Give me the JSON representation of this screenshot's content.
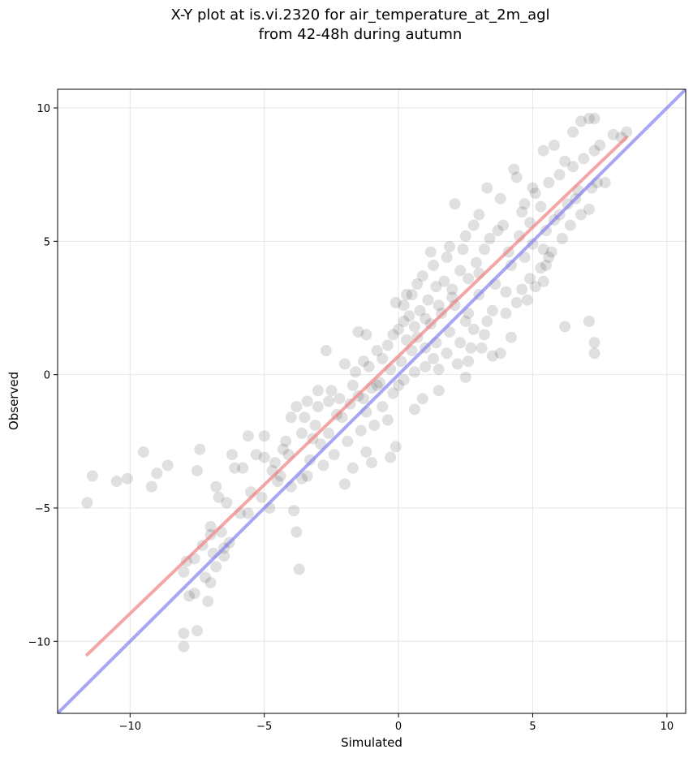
{
  "chart_data": {
    "type": "scatter",
    "title": "X-Y plot at is.vi.2320 for air_temperature_at_2m_agl",
    "subtitle": "from 42-48h during autumn",
    "xlabel": "Simulated",
    "ylabel": "Observed",
    "xlim": [
      -12.7,
      10.7
    ],
    "ylim": [
      -12.7,
      10.7
    ],
    "xticks": [
      -10,
      -5,
      0,
      5,
      10
    ],
    "yticks": [
      -10,
      -5,
      0,
      5,
      10
    ],
    "xtick_labels": [
      "−10",
      "−5",
      "0",
      "5",
      "10"
    ],
    "ytick_labels": [
      "−10",
      "−5",
      "0",
      "5",
      "10"
    ],
    "grid": true,
    "colors": {
      "points": "#000000",
      "fit_line": "#f08080",
      "identity_line": "#8080f0"
    },
    "lines": [
      {
        "role": "fit",
        "x": [
          -11.6,
          8.5
        ],
        "y": [
          -10.5,
          8.9
        ]
      },
      {
        "role": "identity",
        "x": [
          -12.7,
          10.7
        ],
        "y": [
          -12.7,
          10.7
        ]
      }
    ],
    "points": [
      [
        -11.6,
        -4.8
      ],
      [
        -11.4,
        -3.8
      ],
      [
        -10.5,
        -4.0
      ],
      [
        -10.1,
        -3.9
      ],
      [
        -9.5,
        -2.9
      ],
      [
        -9.2,
        -4.2
      ],
      [
        -9.0,
        -3.7
      ],
      [
        -8.6,
        -3.4
      ],
      [
        -8.0,
        -7.4
      ],
      [
        -7.9,
        -7.0
      ],
      [
        -7.8,
        -8.3
      ],
      [
        -7.6,
        -8.2
      ],
      [
        -7.5,
        -9.6
      ],
      [
        -8.0,
        -9.7
      ],
      [
        -8.0,
        -10.2
      ],
      [
        -7.4,
        -2.8
      ],
      [
        -7.5,
        -3.6
      ],
      [
        -7.1,
        -8.5
      ],
      [
        -7.0,
        -7.8
      ],
      [
        -7.0,
        -6.0
      ],
      [
        -6.8,
        -7.2
      ],
      [
        -6.7,
        -4.6
      ],
      [
        -6.8,
        -4.2
      ],
      [
        -6.5,
        -6.8
      ],
      [
        -6.3,
        -6.3
      ],
      [
        -6.1,
        -3.5
      ],
      [
        -6.2,
        -3.0
      ],
      [
        -5.8,
        -3.5
      ],
      [
        -5.6,
        -2.3
      ],
      [
        -5.6,
        -5.2
      ],
      [
        -5.0,
        -3.1
      ],
      [
        -5.0,
        -2.3
      ],
      [
        -4.8,
        -5.0
      ],
      [
        -4.5,
        -4.0
      ],
      [
        -4.3,
        -2.8
      ],
      [
        -4.0,
        -4.2
      ],
      [
        -3.9,
        -5.1
      ],
      [
        -3.8,
        -5.9
      ],
      [
        -3.7,
        -7.3
      ],
      [
        -3.4,
        -3.8
      ],
      [
        -3.5,
        -1.6
      ],
      [
        -3.2,
        -2.4
      ],
      [
        -2.7,
        0.9
      ],
      [
        -2.0,
        0.4
      ],
      [
        -1.5,
        1.6
      ],
      [
        -1.2,
        1.5
      ],
      [
        -1.0,
        -3.3
      ],
      [
        -0.8,
        -0.4
      ],
      [
        -0.3,
        -3.1
      ],
      [
        -0.1,
        -2.7
      ],
      [
        0.6,
        -1.3
      ],
      [
        1.0,
        0.3
      ],
      [
        1.5,
        -0.6
      ],
      [
        2.5,
        -0.1
      ],
      [
        2.6,
        0.5
      ],
      [
        3.5,
        0.7
      ],
      [
        3.8,
        0.8
      ],
      [
        4.2,
        1.4
      ],
      [
        4.8,
        2.8
      ],
      [
        5.4,
        3.5
      ],
      [
        5.6,
        4.4
      ],
      [
        6.2,
        1.8
      ],
      [
        7.1,
        2.0
      ],
      [
        7.3,
        1.2
      ],
      [
        7.3,
        0.8
      ],
      [
        7.1,
        6.2
      ],
      [
        7.4,
        7.2
      ],
      [
        7.7,
        7.2
      ],
      [
        6.8,
        9.5
      ],
      [
        7.1,
        9.6
      ],
      [
        7.3,
        9.6
      ],
      [
        6.5,
        9.1
      ],
      [
        8.0,
        9.0
      ],
      [
        8.3,
        8.9
      ],
      [
        8.5,
        9.1
      ],
      [
        7.5,
        8.6
      ],
      [
        2.1,
        6.4
      ],
      [
        3.3,
        7.0
      ],
      [
        3.7,
        5.4
      ],
      [
        4.3,
        7.7
      ],
      [
        4.7,
        6.4
      ],
      [
        5.0,
        7.0
      ],
      [
        5.4,
        8.4
      ],
      [
        1.3,
        4.1
      ],
      [
        1.8,
        4.4
      ],
      [
        2.4,
        4.7
      ],
      [
        2.8,
        5.6
      ],
      [
        3.2,
        4.7
      ],
      [
        0.2,
        2.6
      ],
      [
        0.5,
        3.0
      ],
      [
        0.9,
        3.7
      ],
      [
        1.4,
        3.3
      ],
      [
        2.0,
        3.2
      ],
      [
        2.6,
        3.6
      ],
      [
        3.0,
        3.8
      ],
      [
        0.0,
        1.7
      ],
      [
        0.4,
        2.2
      ],
      [
        0.7,
        1.4
      ],
      [
        1.2,
        1.9
      ],
      [
        1.6,
        2.3
      ],
      [
        2.1,
        2.6
      ],
      [
        2.6,
        2.3
      ],
      [
        3.0,
        3.0
      ],
      [
        -0.6,
        0.6
      ],
      [
        -0.3,
        0.2
      ],
      [
        0.1,
        0.5
      ],
      [
        0.5,
        0.9
      ],
      [
        1.0,
        1.0
      ],
      [
        1.4,
        1.2
      ],
      [
        1.9,
        1.6
      ],
      [
        -1.3,
        -0.9
      ],
      [
        -1.0,
        -0.5
      ],
      [
        -0.7,
        -0.3
      ],
      [
        -0.2,
        -0.7
      ],
      [
        0.2,
        -0.2
      ],
      [
        0.6,
        0.1
      ],
      [
        -2.1,
        -1.6
      ],
      [
        -1.8,
        -1.1
      ],
      [
        -1.5,
        -0.8
      ],
      [
        -1.2,
        -1.4
      ],
      [
        -0.9,
        -1.9
      ],
      [
        -2.6,
        -2.2
      ],
      [
        -2.3,
        -1.5
      ],
      [
        -2.9,
        -2.6
      ],
      [
        -3.1,
        -1.9
      ],
      [
        -2.4,
        -3.0
      ],
      [
        -1.9,
        -2.5
      ],
      [
        -1.4,
        -2.1
      ],
      [
        -3.3,
        -3.2
      ],
      [
        -2.8,
        -3.4
      ],
      [
        3.5,
        2.4
      ],
      [
        4.0,
        3.1
      ],
      [
        4.4,
        2.7
      ],
      [
        4.9,
        3.6
      ],
      [
        5.3,
        4.0
      ],
      [
        5.7,
        4.6
      ],
      [
        6.1,
        5.1
      ],
      [
        4.1,
        4.6
      ],
      [
        4.5,
        5.2
      ],
      [
        4.9,
        5.7
      ],
      [
        5.3,
        6.3
      ],
      [
        5.8,
        5.8
      ],
      [
        6.3,
        6.4
      ],
      [
        6.7,
        6.9
      ],
      [
        5.1,
        6.8
      ],
      [
        5.6,
        7.2
      ],
      [
        6.0,
        7.5
      ],
      [
        6.5,
        7.8
      ],
      [
        6.9,
        8.1
      ],
      [
        7.3,
        8.4
      ],
      [
        4.6,
        6.1
      ],
      [
        3.9,
        5.6
      ],
      [
        3.4,
        5.1
      ],
      [
        2.9,
        4.2
      ],
      [
        2.3,
        3.9
      ],
      [
        1.7,
        3.5
      ],
      [
        1.1,
        2.8
      ],
      [
        0.8,
        2.4
      ],
      [
        3.6,
        3.4
      ],
      [
        4.2,
        4.1
      ],
      [
        4.7,
        4.4
      ],
      [
        5.5,
        5.4
      ],
      [
        6.0,
        6.0
      ],
      [
        6.6,
        6.6
      ],
      [
        -0.4,
        1.1
      ],
      [
        0.3,
        1.3
      ],
      [
        1.3,
        0.6
      ],
      [
        1.8,
        0.8
      ],
      [
        2.3,
        1.2
      ],
      [
        2.8,
        1.7
      ],
      [
        3.3,
        2.0
      ],
      [
        -1.6,
        0.1
      ],
      [
        -1.1,
        0.3
      ],
      [
        -0.6,
        -1.2
      ],
      [
        0.0,
        -0.4
      ],
      [
        -2.5,
        -0.6
      ],
      [
        -3.0,
        -1.2
      ],
      [
        -3.6,
        -2.2
      ],
      [
        -3.8,
        -1.2
      ],
      [
        -4.2,
        -2.5
      ],
      [
        -4.6,
        -3.3
      ],
      [
        -5.3,
        -3.0
      ],
      [
        -4.4,
        -3.8
      ],
      [
        -3.6,
        -3.9
      ],
      [
        -2.0,
        -4.1
      ],
      [
        -1.7,
        -3.5
      ],
      [
        -1.2,
        -2.9
      ],
      [
        -0.4,
        -1.7
      ],
      [
        0.9,
        -0.9
      ],
      [
        1.5,
        0.2
      ],
      [
        2.2,
        0.4
      ],
      [
        3.1,
        1.0
      ],
      [
        2.5,
        2.0
      ],
      [
        2.0,
        2.9
      ],
      [
        1.5,
        2.6
      ],
      [
        1.0,
        2.1
      ],
      [
        0.6,
        1.8
      ],
      [
        0.2,
        2.0
      ],
      [
        -0.2,
        1.5
      ],
      [
        -0.8,
        0.9
      ],
      [
        -1.3,
        0.5
      ],
      [
        -1.7,
        -0.4
      ],
      [
        -2.2,
        -0.9
      ],
      [
        5.0,
        4.9
      ],
      [
        5.4,
        4.7
      ],
      [
        6.4,
        5.6
      ],
      [
        6.8,
        6.0
      ],
      [
        7.2,
        7.0
      ],
      [
        6.2,
        8.0
      ],
      [
        5.8,
        8.6
      ],
      [
        4.4,
        7.4
      ],
      [
        3.8,
        6.6
      ],
      [
        3.0,
        6.0
      ],
      [
        2.5,
        5.2
      ],
      [
        1.9,
        4.8
      ],
      [
        1.2,
        4.6
      ],
      [
        0.7,
        3.4
      ],
      [
        0.3,
        3.0
      ],
      [
        -0.1,
        2.7
      ],
      [
        4.0,
        2.3
      ],
      [
        4.6,
        3.2
      ],
      [
        5.1,
        3.3
      ],
      [
        5.5,
        4.1
      ],
      [
        3.2,
        1.5
      ],
      [
        2.7,
        1.0
      ],
      [
        -6.5,
        -6.5
      ],
      [
        -6.9,
        -6.7
      ],
      [
        -7.3,
        -6.4
      ],
      [
        -7.0,
        -5.7
      ],
      [
        -6.4,
        -4.8
      ],
      [
        -5.9,
        -5.2
      ],
      [
        -5.5,
        -4.4
      ],
      [
        -5.1,
        -4.6
      ],
      [
        -4.7,
        -3.6
      ],
      [
        -4.1,
        -3.0
      ],
      [
        -4.0,
        -1.6
      ],
      [
        -3.4,
        -1.0
      ],
      [
        -3.0,
        -0.6
      ],
      [
        -2.6,
        -1.0
      ],
      [
        -7.6,
        -6.9
      ],
      [
        -7.2,
        -7.6
      ],
      [
        -6.6,
        -5.9
      ]
    ]
  }
}
